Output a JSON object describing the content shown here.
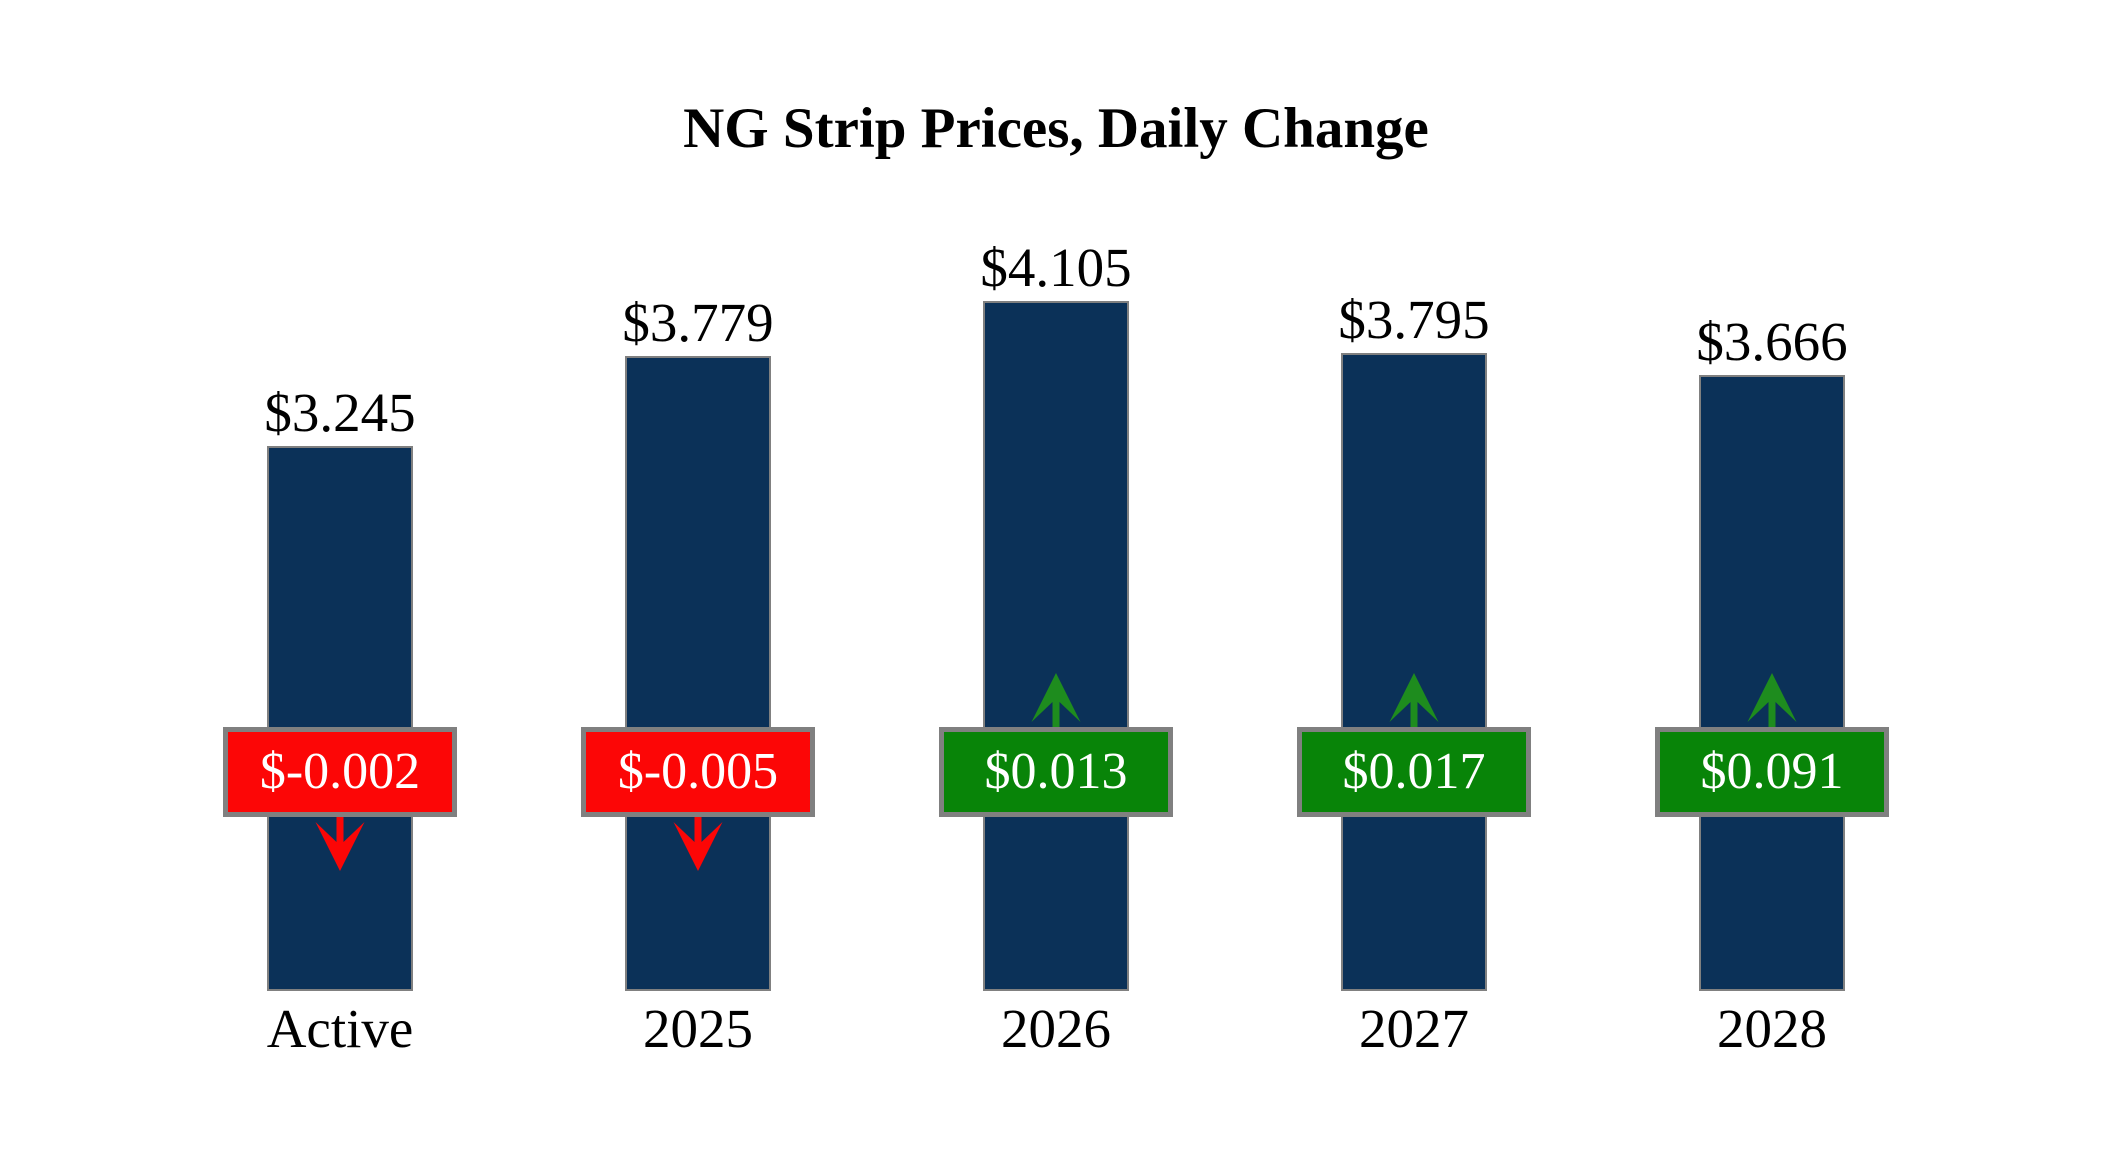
{
  "title": "NG Strip Prices, Daily Change",
  "colors": {
    "background": "#FFFFFF",
    "bar_fill": "#0B3158",
    "bar_border": "#808080",
    "badge_border": "#808080",
    "badge_text": "#FFFFFF",
    "negative_badge": "#FC0606",
    "positive_badge": "#088408",
    "negative_arrow": "#FC0606",
    "positive_arrow": "#1E8C1E",
    "label_text": "#000000"
  },
  "chart_data": {
    "type": "bar",
    "title": "NG Strip Prices, Daily Change",
    "categories": [
      "Active",
      "2025",
      "2026",
      "2027",
      "2028"
    ],
    "values": [
      3.245,
      3.779,
      4.105,
      3.795,
      3.666
    ],
    "value_labels": [
      "$3.245",
      "$3.779",
      "$4.105",
      "$3.795",
      "$3.666"
    ],
    "daily_changes": [
      -0.002,
      -0.005,
      0.013,
      0.017,
      0.091
    ],
    "change_labels": [
      "$-0.002",
      "$-0.005",
      "$0.013",
      "$0.017",
      "$0.091"
    ],
    "change_directions": [
      "down",
      "down",
      "up",
      "up",
      "up"
    ],
    "xlabel": "",
    "ylabel": "",
    "ylim": [
      0,
      4.5
    ],
    "baseline": 0,
    "grid": false,
    "legend": false,
    "value_unit": "$ per MMBtu (shown as $)"
  }
}
